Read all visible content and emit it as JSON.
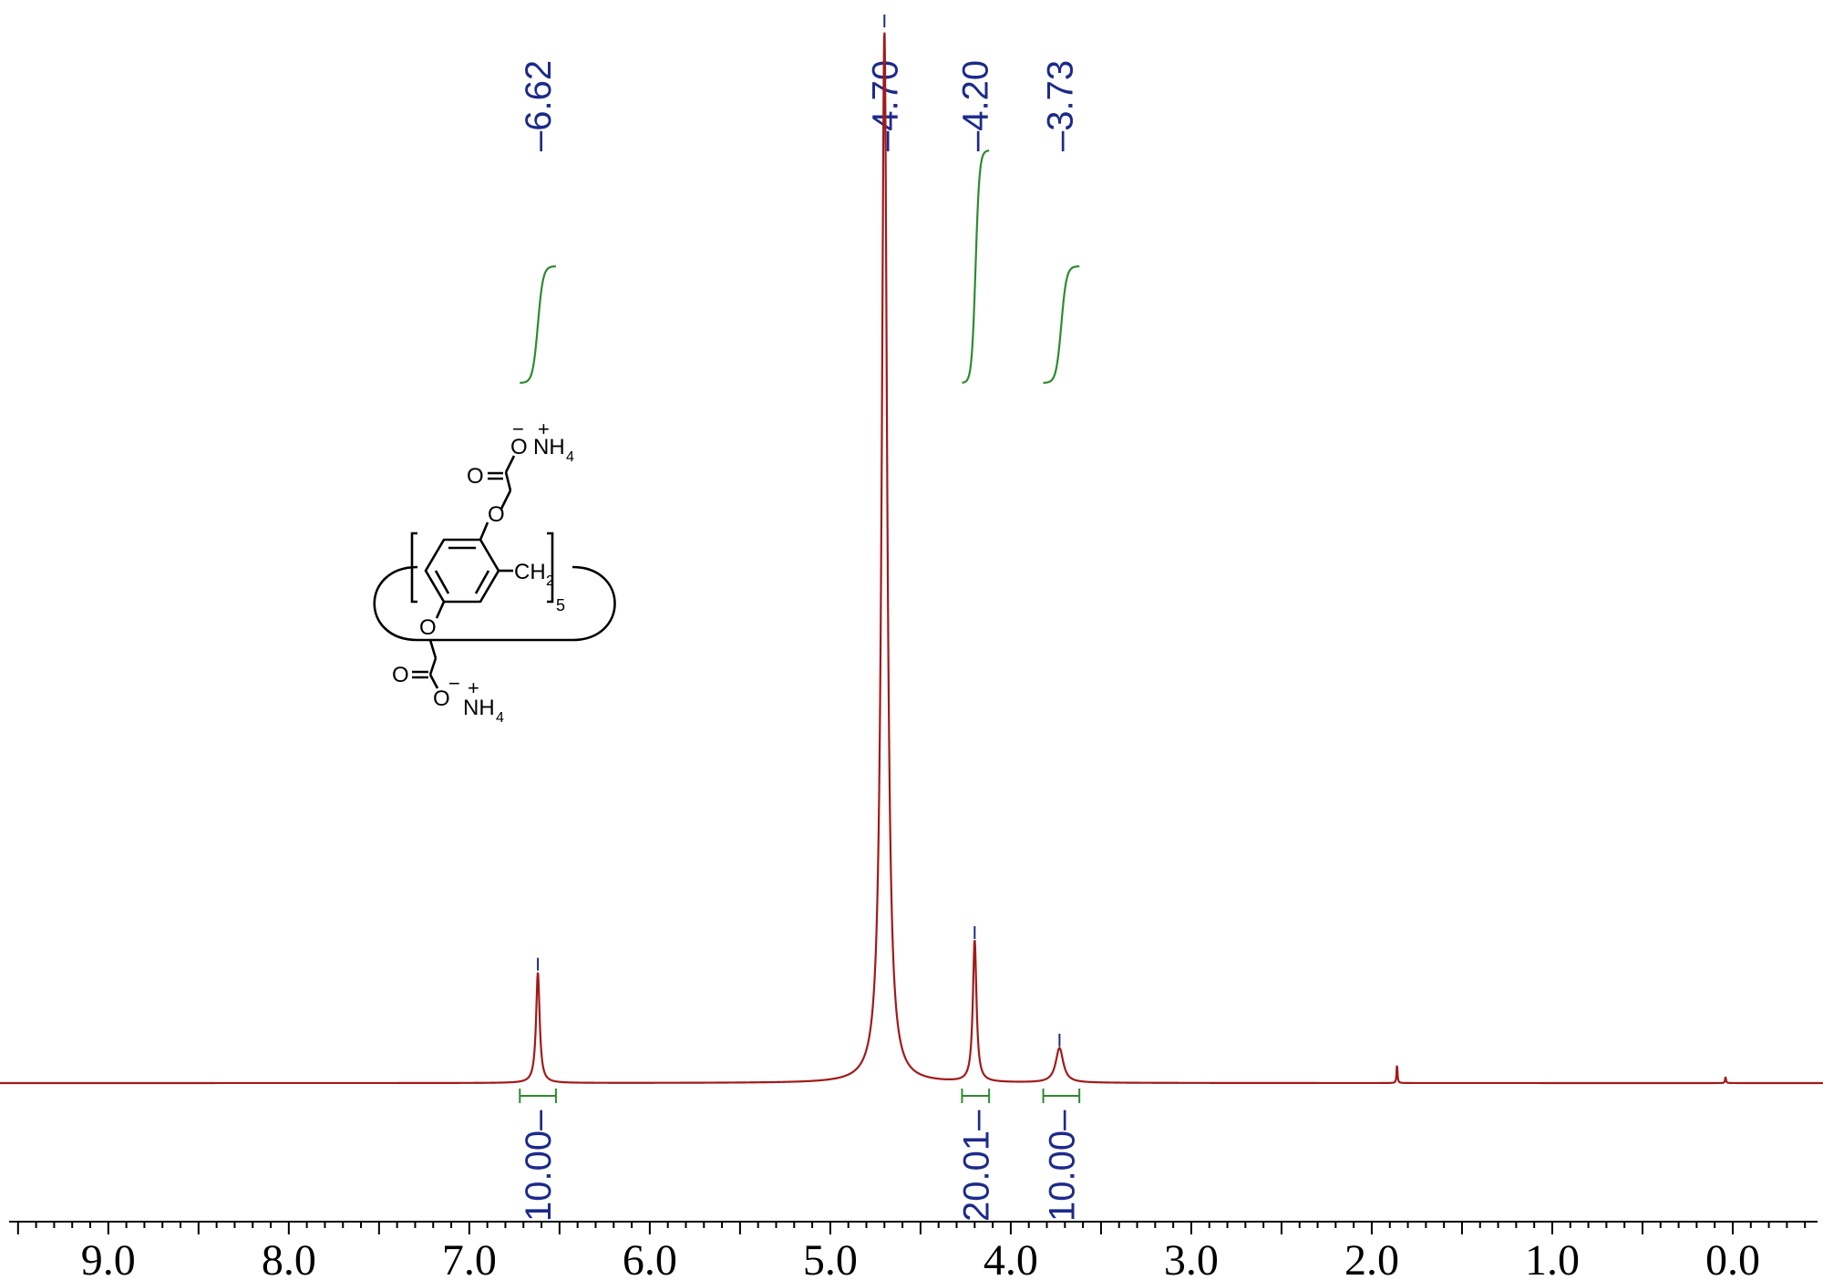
{
  "chart_data": {
    "type": "line",
    "title": "",
    "xlabel": "",
    "ylabel": "",
    "x_reversed": true,
    "xlim": [
      9.6,
      -0.5
    ],
    "ylim": [
      -0.13,
      1.0
    ],
    "grid": false,
    "x_ticks": [
      9.0,
      8.0,
      7.0,
      6.0,
      5.0,
      4.0,
      3.0,
      2.0,
      1.0,
      0.0
    ],
    "x_tick_labels": [
      "9.0",
      "8.0",
      "7.0",
      "6.0",
      "5.0",
      "4.0",
      "3.0",
      "2.0",
      "1.0",
      "0.0"
    ],
    "series": [
      {
        "color": "#a11a1a",
        "peaks": [
          {
            "shift": 6.62,
            "height": 0.105,
            "width": 0.012
          },
          {
            "shift": 4.7,
            "height": 1.0,
            "width": 0.018
          },
          {
            "shift": 4.2,
            "height": 0.135,
            "width": 0.012
          },
          {
            "shift": 3.73,
            "height": 0.033,
            "width": 0.025
          },
          {
            "shift": 1.86,
            "height": 0.018,
            "width": 0.003
          },
          {
            "shift": 0.04,
            "height": 0.006,
            "width": 0.003
          }
        ]
      }
    ],
    "peak_labels": [
      "6.62",
      "4.70",
      "4.20",
      "3.73"
    ],
    "peak_label_color": "#1c2a8c",
    "integrals": [
      {
        "from": 6.72,
        "to": 6.52,
        "value": "10.00"
      },
      {
        "from": 4.27,
        "to": 4.12,
        "value": "20.01"
      },
      {
        "from": 3.82,
        "to": 3.62,
        "value": "10.00"
      }
    ],
    "integral_color": "#2e8b2e",
    "structure_labels": {
      "top_anion": "O",
      "top_cation": "NH",
      "top_cation_sub": "4",
      "top_carbonyl": "O",
      "top_ether": "O",
      "methylene": "CH",
      "methylene_sub": "2",
      "repeat": "5",
      "bottom_ether": "O",
      "bottom_carbonyl": "O",
      "bottom_anion": "O",
      "bottom_cation": "NH",
      "bottom_cation_sub": "4",
      "minus": "−",
      "plus": "+"
    }
  }
}
